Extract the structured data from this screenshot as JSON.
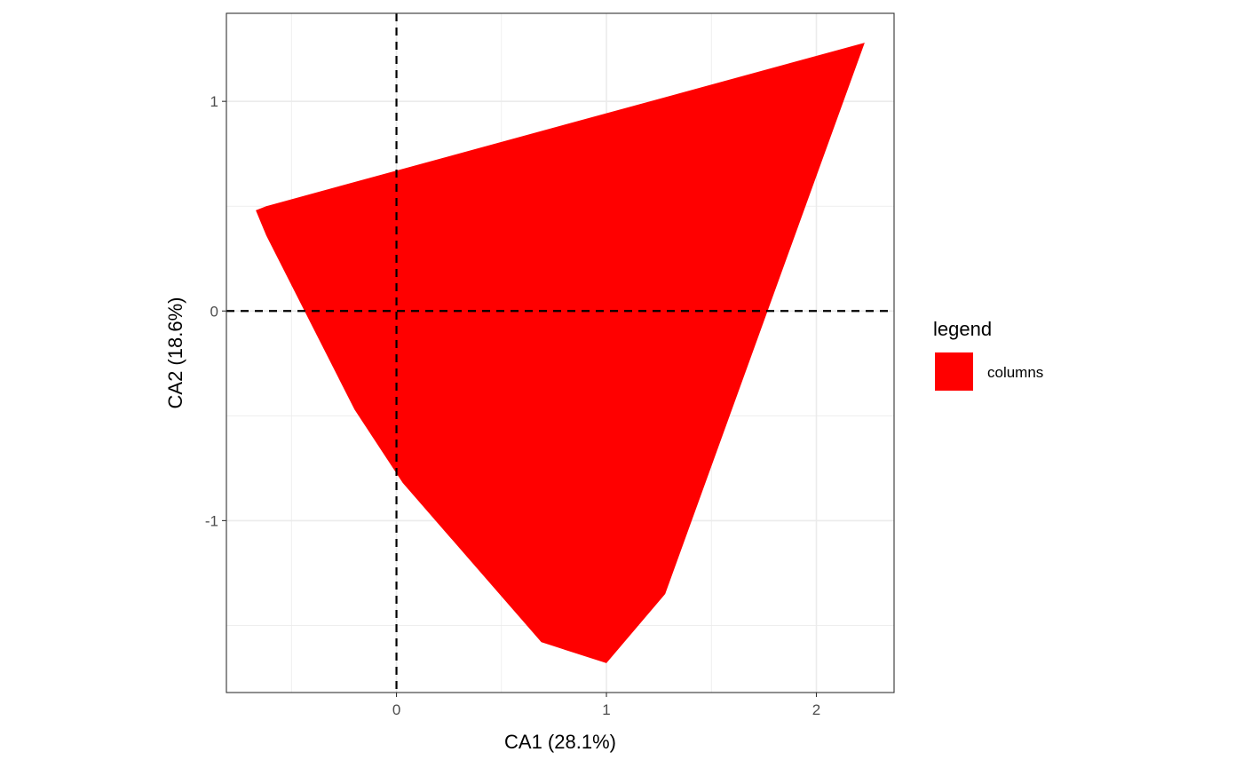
{
  "chart_data": {
    "type": "area",
    "xlabel": "CA1 (28.1%)",
    "ylabel": "CA2 (18.6%)",
    "xlim": [
      -0.81,
      2.37
    ],
    "ylim": [
      -1.82,
      1.42
    ],
    "x_ticks": [
      0,
      1,
      2
    ],
    "x_tick_labels": [
      "0",
      "1",
      "2"
    ],
    "y_ticks": [
      -1,
      0,
      1
    ],
    "y_tick_labels": [
      "-1",
      "0",
      "1"
    ],
    "grid": true,
    "reference_lines": {
      "x": 0,
      "y": 0,
      "style": "dashed"
    },
    "legend": {
      "title": "legend",
      "position": "right",
      "entries": [
        {
          "label": "columns",
          "color": "#ff0000"
        }
      ]
    },
    "series": [
      {
        "name": "columns",
        "color": "#ff0000",
        "polygon": [
          {
            "x": -0.67,
            "y": 0.48
          },
          {
            "x": -0.62,
            "y": 0.5
          },
          {
            "x": 2.23,
            "y": 1.28
          },
          {
            "x": 1.28,
            "y": -1.35
          },
          {
            "x": 1.0,
            "y": -1.68
          },
          {
            "x": 0.69,
            "y": -1.58
          },
          {
            "x": 0.03,
            "y": -0.82
          },
          {
            "x": -0.2,
            "y": -0.47
          },
          {
            "x": -0.62,
            "y": 0.36
          }
        ]
      }
    ]
  }
}
